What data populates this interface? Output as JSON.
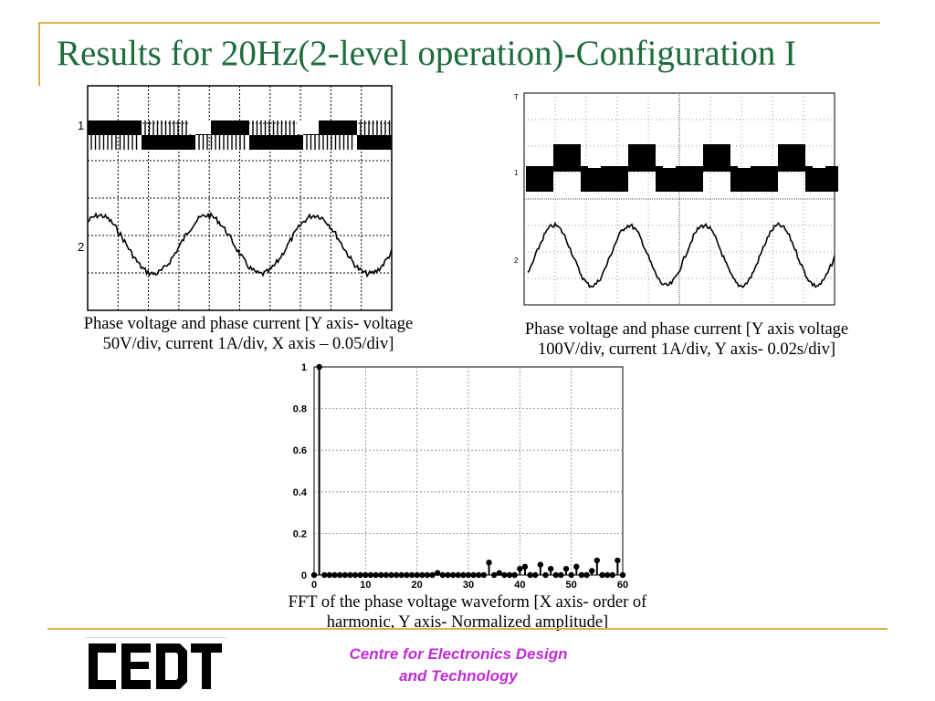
{
  "slide": {
    "title": "Results for 20Hz(2-level operation)-Configuration I",
    "footer_org_line1": "Centre for Electronics Design",
    "footer_org_line2": "and Technology",
    "logo_text": "CEDT",
    "accent_color": "#d8b24a",
    "title_color": "#1e6b3c",
    "org_color": "#c12bd6"
  },
  "scope_left": {
    "channel_1_label": "1",
    "channel_2_label": "2",
    "caption_line1": "Phase voltage and phase current [Y axis- voltage",
    "caption_line2": "50V/div, current 1A/div, X axis – 0.05/div]"
  },
  "scope_right": {
    "channel_1_label": "1",
    "channel_2_label": "2",
    "caption_line1": "Phase voltage and phase current [Y axis voltage",
    "caption_line2": "100V/div, current 1A/div, Y axis- 0.02s/div]"
  },
  "fft": {
    "caption_line1": "FFT of the phase voltage waveform [X axis- order of",
    "caption_line2": "harmonic, Y axis- Normalized amplitude]"
  },
  "chart_data": {
    "type": "stem",
    "title": "",
    "xlabel": "",
    "ylabel": "",
    "xlim": [
      0,
      60
    ],
    "ylim": [
      0,
      1
    ],
    "xticks": [
      "0",
      "10",
      "20",
      "30",
      "40",
      "50",
      "60"
    ],
    "yticks": [
      "0",
      "0.2",
      "0.4",
      "0.6",
      "0.8",
      "1"
    ],
    "grid": true,
    "x": [
      0,
      1,
      2,
      3,
      4,
      5,
      6,
      7,
      8,
      9,
      10,
      11,
      12,
      13,
      14,
      15,
      16,
      17,
      18,
      19,
      20,
      21,
      22,
      23,
      24,
      25,
      26,
      27,
      28,
      29,
      30,
      31,
      32,
      33,
      34,
      35,
      36,
      37,
      38,
      39,
      40,
      41,
      42,
      43,
      44,
      45,
      46,
      47,
      48,
      49,
      50,
      51,
      52,
      53,
      54,
      55,
      56,
      57,
      58,
      59,
      60
    ],
    "values": [
      0,
      1,
      0,
      0,
      0,
      0,
      0,
      0,
      0,
      0,
      0,
      0,
      0,
      0,
      0,
      0,
      0,
      0,
      0,
      0,
      0,
      0,
      0,
      0,
      0.01,
      0,
      0,
      0,
      0,
      0,
      0,
      0,
      0,
      0,
      0.06,
      0,
      0.01,
      0,
      0,
      0,
      0.03,
      0.04,
      0,
      0,
      0.05,
      0,
      0.03,
      0,
      0,
      0.03,
      0,
      0.04,
      0,
      0,
      0.02,
      0.07,
      0,
      0,
      0,
      0.07,
      0
    ]
  }
}
